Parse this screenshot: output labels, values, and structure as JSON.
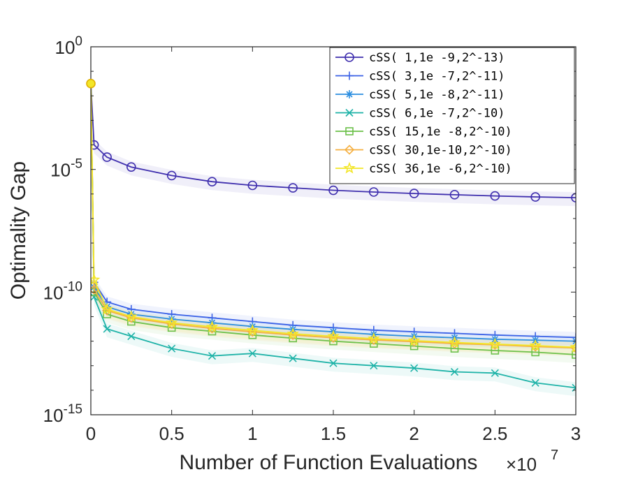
{
  "chart_data": {
    "type": "line",
    "title": "",
    "xlabel": "Number of Function Evaluations",
    "x_exponent_label": "×10",
    "x_exponent": "7",
    "ylabel": "Optimality Gap",
    "y_scale": "log",
    "xlim": [
      0,
      3
    ],
    "ylim_exponent": [
      -15,
      0
    ],
    "x_ticks": [
      "0",
      "0.5",
      "1",
      "1.5",
      "2",
      "2.5",
      "3"
    ],
    "y_ticks": [
      {
        "base": "10",
        "exp": "0",
        "value": 0
      },
      {
        "base": "10",
        "exp": "-5",
        "value": -5
      },
      {
        "base": "10",
        "exp": "-10",
        "value": -10
      },
      {
        "base": "10",
        "exp": "-15",
        "value": -15
      }
    ],
    "legend_position": "top-right",
    "grid": false,
    "x": [
      0,
      0.02,
      0.1,
      0.25,
      0.5,
      0.75,
      1.0,
      1.25,
      1.5,
      1.75,
      2.0,
      2.25,
      2.5,
      2.75,
      3.0
    ],
    "series": [
      {
        "name": "cSS(  1,1e -9,2^-13)",
        "color": "#3f2fae",
        "marker": "circle",
        "log10_y": [
          -1.5,
          -4.0,
          -4.5,
          -4.9,
          -5.25,
          -5.5,
          -5.65,
          -5.75,
          -5.85,
          -5.92,
          -5.98,
          -6.03,
          -6.08,
          -6.12,
          -6.15
        ]
      },
      {
        "name": "cSS(  3,1e -7,2^-11)",
        "color": "#3c62e6",
        "marker": "plus",
        "log10_y": [
          -1.5,
          -9.6,
          -10.4,
          -10.7,
          -10.9,
          -11.05,
          -11.2,
          -11.35,
          -11.45,
          -11.55,
          -11.62,
          -11.68,
          -11.75,
          -11.8,
          -11.85
        ]
      },
      {
        "name": "cSS(  5,1e -8,2^-11)",
        "color": "#2e8fe0",
        "marker": "asterisk",
        "log10_y": [
          -1.5,
          -9.8,
          -10.6,
          -10.9,
          -11.1,
          -11.25,
          -11.4,
          -11.52,
          -11.62,
          -11.72,
          -11.8,
          -11.86,
          -11.92,
          -11.96,
          -12.0
        ]
      },
      {
        "name": "cSS(  6,1e -7,2^-10)",
        "color": "#1fb3a8",
        "marker": "x",
        "log10_y": [
          -1.5,
          -10.2,
          -11.5,
          -11.8,
          -12.3,
          -12.6,
          -12.5,
          -12.7,
          -12.9,
          -13.0,
          -13.1,
          -13.25,
          -13.3,
          -13.7,
          -13.9
        ]
      },
      {
        "name": "cSS( 15,1e -8,2^-10)",
        "color": "#6cc04a",
        "marker": "square",
        "log10_y": [
          -1.5,
          -10.0,
          -10.9,
          -11.2,
          -11.45,
          -11.6,
          -11.75,
          -11.88,
          -12.0,
          -12.1,
          -12.2,
          -12.3,
          -12.38,
          -12.45,
          -12.55
        ]
      },
      {
        "name": "cSS( 30,1e-10,2^-10)",
        "color": "#f5b042",
        "marker": "diamond",
        "log10_y": [
          -1.5,
          -9.9,
          -10.75,
          -11.05,
          -11.3,
          -11.48,
          -11.62,
          -11.75,
          -11.86,
          -11.95,
          -12.02,
          -12.1,
          -12.15,
          -12.22,
          -12.28
        ]
      },
      {
        "name": "cSS( 36,1e -6,2^-10)",
        "color": "#f3e628",
        "marker": "star",
        "log10_y": [
          -1.5,
          -9.5,
          -10.7,
          -11.0,
          -11.25,
          -11.42,
          -11.56,
          -11.7,
          -11.8,
          -11.9,
          -11.98,
          -12.05,
          -12.12,
          -12.18,
          -12.25
        ]
      }
    ]
  }
}
